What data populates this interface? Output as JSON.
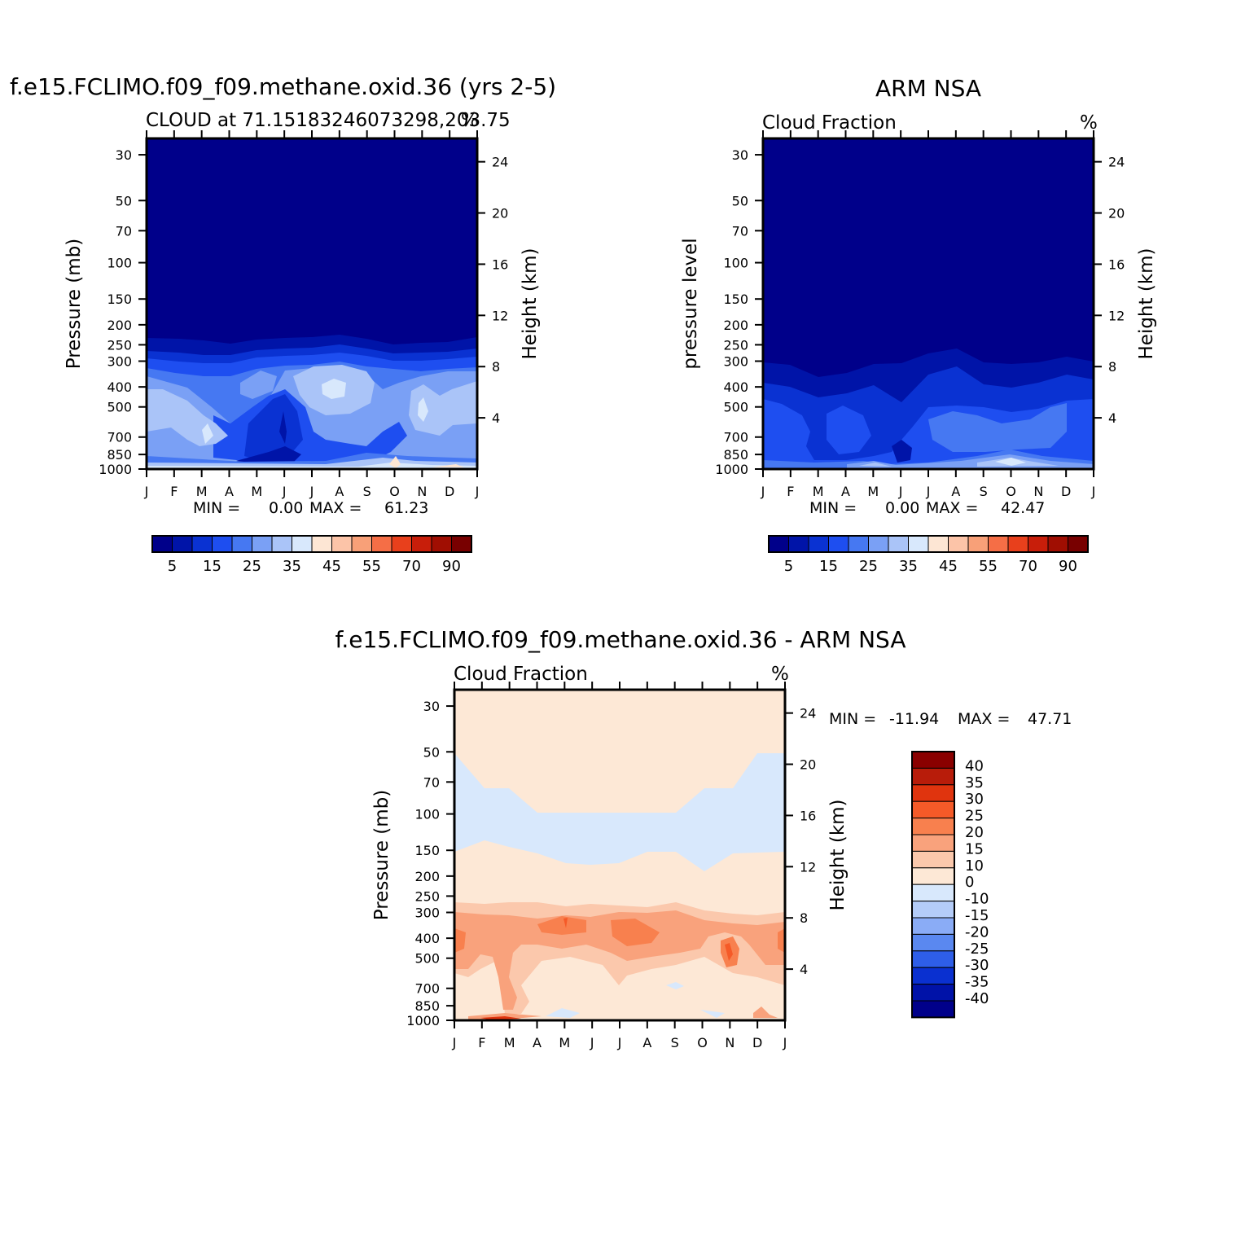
{
  "chart_data": [
    {
      "type": "heatmap",
      "title": "f.e15.FCLIMO.f09_f09.methane.oxid.36 (yrs 2-5)",
      "subtitle": "CLOUD at 71.15183246073298,203.75",
      "units": "%",
      "ylabel": "Pressure (mb)",
      "ylabel_right": "Height (km)",
      "x": [
        "J",
        "F",
        "M",
        "A",
        "M",
        "J",
        "J",
        "A",
        "S",
        "O",
        "N",
        "D",
        "J"
      ],
      "y_ticks": [
        "30",
        "50",
        "70",
        "100",
        "150",
        "200",
        "250",
        "300",
        "400",
        "500",
        "700",
        "850",
        "1000"
      ],
      "y_right_ticks": [
        "24",
        "20",
        "16",
        "12",
        "8",
        "4"
      ],
      "min_label": "MIN =",
      "min_value": "0.00",
      "max_label": "MAX =",
      "max_value": "61.23",
      "levels": [
        "5",
        "15",
        "25",
        "35",
        "45",
        "55",
        "70",
        "90"
      ],
      "colors": [
        "#00008a",
        "#0014a8",
        "#0a32d2",
        "#1e4ef0",
        "#4678f2",
        "#7aa0f5",
        "#aac4f8",
        "#d8e8fc",
        "#fde6d4",
        "#fcc4a8",
        "#f8a078",
        "#f56e46",
        "#e8401c",
        "#c81e0a",
        "#a00e02",
        "#780000"
      ]
    },
    {
      "type": "heatmap",
      "title": "ARM NSA",
      "subtitle": "Cloud Fraction",
      "units": "%",
      "ylabel": "pressure level",
      "ylabel_right": "Height (km)",
      "x": [
        "J",
        "F",
        "M",
        "A",
        "M",
        "J",
        "J",
        "A",
        "S",
        "O",
        "N",
        "D",
        "J"
      ],
      "y_ticks": [
        "30",
        "50",
        "70",
        "100",
        "150",
        "200",
        "250",
        "300",
        "400",
        "500",
        "700",
        "850",
        "1000"
      ],
      "y_right_ticks": [
        "24",
        "20",
        "16",
        "12",
        "8",
        "4"
      ],
      "min_label": "MIN =",
      "min_value": "0.00",
      "max_label": "MAX =",
      "max_value": "42.47",
      "levels": [
        "5",
        "15",
        "25",
        "35",
        "45",
        "55",
        "70",
        "90"
      ],
      "colors": [
        "#00008a",
        "#0014a8",
        "#0a32d2",
        "#1e4ef0",
        "#4678f2",
        "#7aa0f5",
        "#aac4f8",
        "#d8e8fc",
        "#fde6d4",
        "#fcc4a8",
        "#f8a078",
        "#f56e46",
        "#e8401c",
        "#c81e0a",
        "#a00e02",
        "#780000"
      ]
    },
    {
      "type": "heatmap",
      "title": "f.e15.FCLIMO.f09_f09.methane.oxid.36 - ARM NSA",
      "subtitle": "Cloud Fraction",
      "units": "%",
      "ylabel": "Pressure (mb)",
      "ylabel_right": "Height (km)",
      "x": [
        "J",
        "F",
        "M",
        "A",
        "M",
        "J",
        "J",
        "A",
        "S",
        "O",
        "N",
        "D",
        "J"
      ],
      "y_ticks": [
        "30",
        "50",
        "70",
        "100",
        "150",
        "200",
        "250",
        "300",
        "400",
        "500",
        "700",
        "850",
        "1000"
      ],
      "y_right_ticks": [
        "24",
        "20",
        "16",
        "12",
        "8",
        "4"
      ],
      "min_label": "MIN =",
      "min_value": "-11.94",
      "max_label": "MAX =",
      "max_value": "47.71",
      "levels": [
        "40",
        "35",
        "30",
        "25",
        "20",
        "15",
        "10",
        "0",
        "-10",
        "-15",
        "-20",
        "-25",
        "-30",
        "-35",
        "-40"
      ],
      "colors": [
        "#8a0000",
        "#b81c0a",
        "#e0340e",
        "#f55a28",
        "#f8804e",
        "#f9a27c",
        "#fbc8ac",
        "#fde8d6",
        "#d8e8fc",
        "#b4ccf8",
        "#8aacf6",
        "#5a88f0",
        "#2e5ee8",
        "#0a30d0",
        "#0012a8",
        "#00008a"
      ]
    }
  ]
}
